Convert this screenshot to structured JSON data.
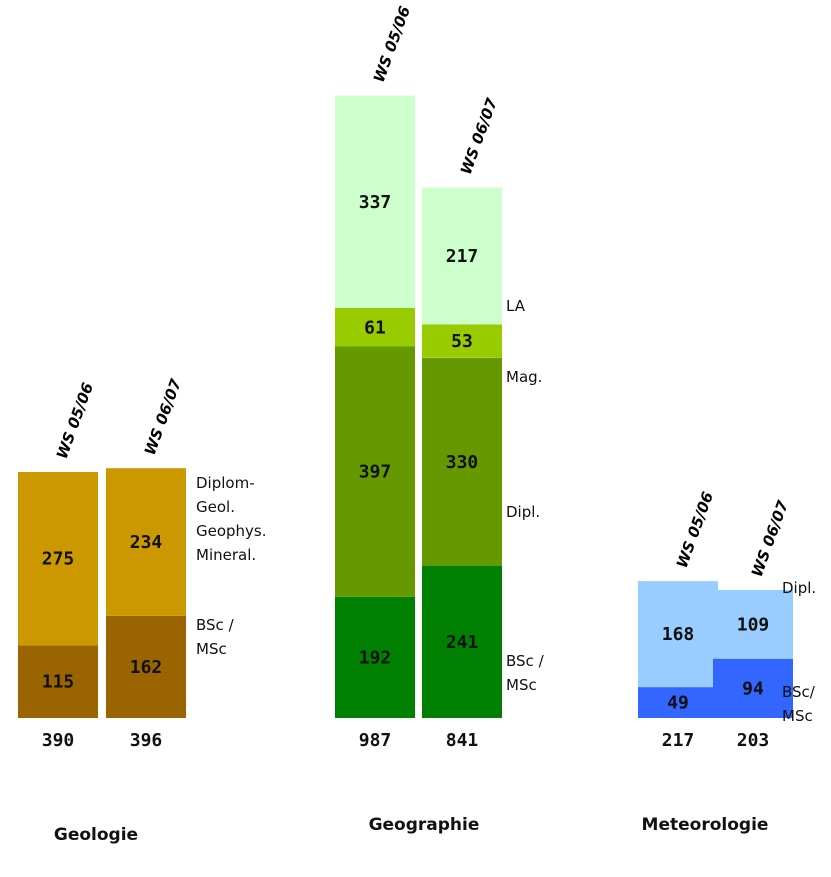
{
  "chart_data": [
    {
      "type": "bar",
      "stacked": true,
      "title": "Geologie",
      "categories": [
        "WS 05/06",
        "WS 06/07"
      ],
      "totals": [
        "390",
        "396"
      ],
      "series": [
        {
          "name": "BSc / MSc",
          "values": [
            115,
            162
          ],
          "colors": [
            "#9a6400",
            "#9a6400"
          ]
        },
        {
          "name": "Diplom- Geol. Geophys. Mineral.",
          "values": [
            275,
            234
          ],
          "colors": [
            "#cc9800",
            "#cc9800"
          ]
        }
      ],
      "category_labels": [
        {
          "series": 1,
          "lines": [
            "Diplom-",
            "Geol.",
            "Geophys.",
            "Mineral."
          ]
        },
        {
          "series": 0,
          "lines": [
            "BSc /",
            "MSc"
          ]
        }
      ]
    },
    {
      "type": "bar",
      "stacked": true,
      "title": "Geographie",
      "categories": [
        "WS 05/06",
        "WS 06/07"
      ],
      "totals": [
        "987",
        "841"
      ],
      "series": [
        {
          "name": "BSc / MSc",
          "values": [
            192,
            241
          ],
          "colors": [
            "#008000",
            "#008000"
          ]
        },
        {
          "name": "Dipl.",
          "values": [
            397,
            330
          ],
          "colors": [
            "#669900",
            "#669900"
          ]
        },
        {
          "name": "Mag.",
          "values": [
            61,
            53
          ],
          "colors": [
            "#99cc00",
            "#99cc00"
          ]
        },
        {
          "name": "LA",
          "values": [
            337,
            217
          ],
          "colors": [
            "#ccffcc",
            "#ccffcc"
          ]
        }
      ],
      "category_labels": [
        {
          "series": 3,
          "lines": [
            "LA"
          ]
        },
        {
          "series": 2,
          "lines": [
            "Mag."
          ]
        },
        {
          "series": 1,
          "lines": [
            "Dipl."
          ]
        },
        {
          "series": 0,
          "lines": [
            "BSc /",
            "MSc"
          ]
        }
      ]
    },
    {
      "type": "bar",
      "stacked": true,
      "title": "Meteorologie",
      "categories": [
        "WS 05/06",
        "WS 06/07"
      ],
      "totals": [
        "217",
        "203"
      ],
      "series": [
        {
          "name": "BSc/ MSc",
          "values": [
            49,
            94
          ],
          "colors": [
            "#3366ff",
            "#3366ff"
          ]
        },
        {
          "name": "Dipl.",
          "values": [
            168,
            109
          ],
          "colors": [
            "#99ccff",
            "#99ccff"
          ]
        }
      ],
      "category_labels": [
        {
          "series": 1,
          "lines": [
            "Dipl."
          ]
        },
        {
          "series": 0,
          "lines": [
            "BSc/",
            "MSc"
          ]
        }
      ]
    }
  ]
}
